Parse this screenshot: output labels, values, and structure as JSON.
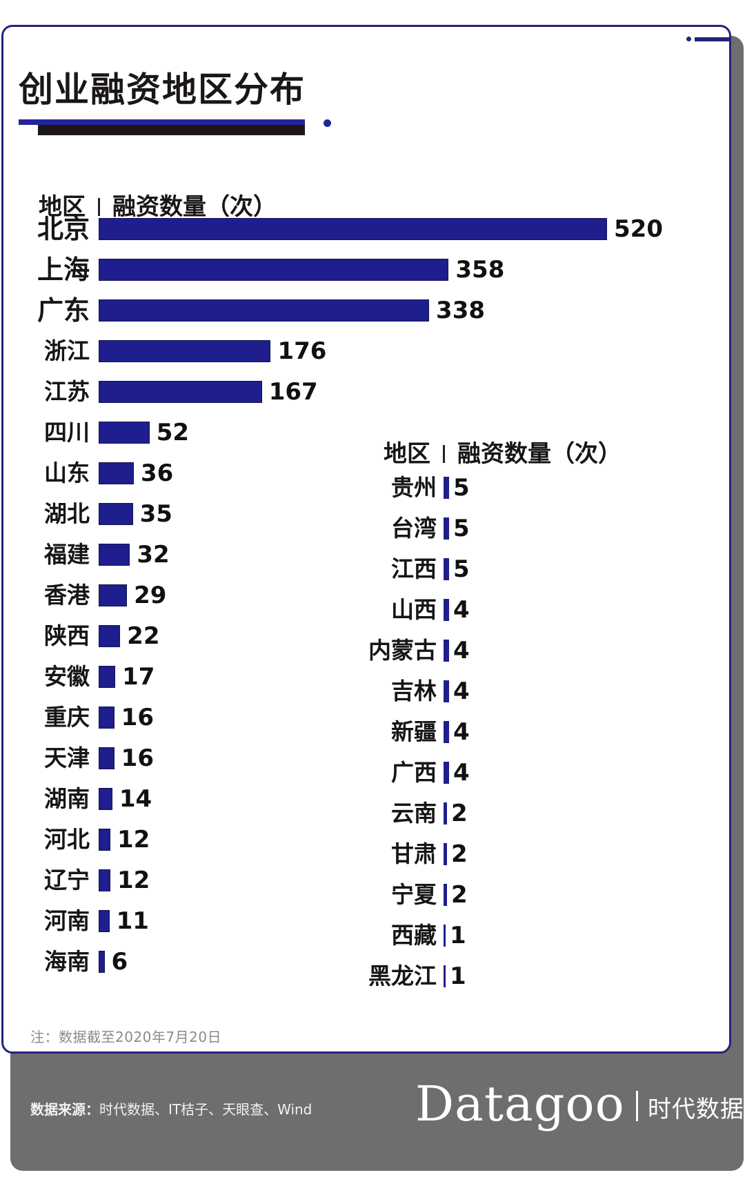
{
  "title": "创业融资地区分布",
  "column_header": {
    "region": "地区",
    "count": "融资数量（次）"
  },
  "note": "注：数据截至2020年7月20日",
  "footer": {
    "source_label": "数据来源：",
    "source_text": "时代数据、IT桔子、天眼查、Wind",
    "brand_logo": "Datagoo",
    "brand_cn": "时代数据"
  },
  "colors": {
    "bar": "#1e1e8e",
    "frame": "#23237a",
    "footer_bg": "#6f6e6f",
    "title_accent_black": "#1e1717"
  },
  "left_rows": [
    {
      "region": "北京",
      "value": "520",
      "top": true
    },
    {
      "region": "上海",
      "value": "358",
      "top": true
    },
    {
      "region": "广东",
      "value": "338",
      "top": true
    },
    {
      "region": "浙江",
      "value": "176"
    },
    {
      "region": "江苏",
      "value": "167"
    },
    {
      "region": "四川",
      "value": "52"
    },
    {
      "region": "山东",
      "value": "36"
    },
    {
      "region": "湖北",
      "value": "35"
    },
    {
      "region": "福建",
      "value": "32"
    },
    {
      "region": "香港",
      "value": "29"
    },
    {
      "region": "陕西",
      "value": "22"
    },
    {
      "region": "安徽",
      "value": "17"
    },
    {
      "region": "重庆",
      "value": "16"
    },
    {
      "region": "天津",
      "value": "16"
    },
    {
      "region": "湖南",
      "value": "14"
    },
    {
      "region": "河北",
      "value": "12"
    },
    {
      "region": "辽宁",
      "value": "12"
    },
    {
      "region": "河南",
      "value": "11"
    },
    {
      "region": "海南",
      "value": "6"
    }
  ],
  "right_rows": [
    {
      "region": "贵州",
      "value": "5"
    },
    {
      "region": "台湾",
      "value": "5"
    },
    {
      "region": "江西",
      "value": "5"
    },
    {
      "region": "山西",
      "value": "4"
    },
    {
      "region": "内蒙古",
      "value": "4"
    },
    {
      "region": "吉林",
      "value": "4"
    },
    {
      "region": "新疆",
      "value": "4"
    },
    {
      "region": "广西",
      "value": "4"
    },
    {
      "region": "云南",
      "value": "2"
    },
    {
      "region": "甘肃",
      "value": "2"
    },
    {
      "region": "宁夏",
      "value": "2"
    },
    {
      "region": "西藏",
      "value": "1"
    },
    {
      "region": "黑龙江",
      "value": "1"
    }
  ],
  "chart_data": {
    "type": "bar",
    "orientation": "horizontal",
    "title": "创业融资地区分布",
    "xlabel": "融资数量（次）",
    "ylabel": "地区",
    "categories": [
      "北京",
      "上海",
      "广东",
      "浙江",
      "江苏",
      "四川",
      "山东",
      "湖北",
      "福建",
      "香港",
      "陕西",
      "安徽",
      "重庆",
      "天津",
      "湖南",
      "河北",
      "辽宁",
      "河南",
      "海南",
      "贵州",
      "台湾",
      "江西",
      "山西",
      "内蒙古",
      "吉林",
      "新疆",
      "广西",
      "云南",
      "甘肃",
      "宁夏",
      "西藏",
      "黑龙江"
    ],
    "values": [
      520,
      358,
      338,
      176,
      167,
      52,
      36,
      35,
      32,
      29,
      22,
      17,
      16,
      16,
      14,
      12,
      12,
      11,
      6,
      5,
      5,
      5,
      4,
      4,
      4,
      4,
      4,
      2,
      2,
      2,
      1,
      1
    ],
    "data_labels": true,
    "grid": false,
    "legend": "none",
    "annotation": "注：数据截至2020年7月20日"
  }
}
